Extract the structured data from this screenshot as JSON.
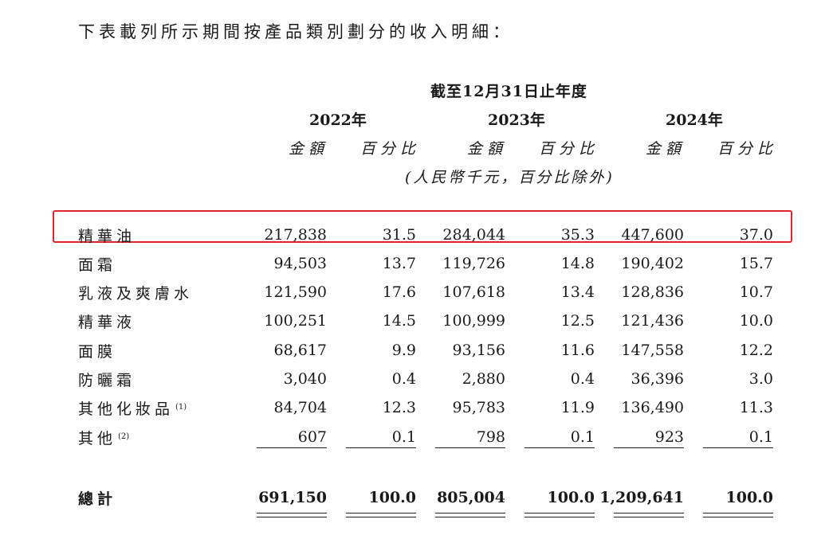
{
  "intro": "下表載列所示期間按產品類別劃分的收入明細：",
  "header": {
    "period": "截至12月31日止年度",
    "years": [
      "2022年",
      "2023年",
      "2024年"
    ],
    "col_amount": "金額",
    "col_percent": "百分比",
    "unit_note": "(人民幣千元，百分比除外)"
  },
  "rows": [
    {
      "label": "精華油",
      "note": "",
      "values": [
        "217,838",
        "31.5",
        "284,044",
        "35.3",
        "447,600",
        "37.0"
      ]
    },
    {
      "label": "面霜",
      "note": "",
      "values": [
        "94,503",
        "13.7",
        "119,726",
        "14.8",
        "190,402",
        "15.7"
      ]
    },
    {
      "label": "乳液及爽膚水",
      "note": "",
      "values": [
        "121,590",
        "17.6",
        "107,618",
        "13.4",
        "128,836",
        "10.7"
      ]
    },
    {
      "label": "精華液",
      "note": "",
      "values": [
        "100,251",
        "14.5",
        "100,999",
        "12.5",
        "121,436",
        "10.0"
      ]
    },
    {
      "label": "面膜",
      "note": "",
      "values": [
        "68,617",
        "9.9",
        "93,156",
        "11.6",
        "147,558",
        "12.2"
      ]
    },
    {
      "label": "防曬霜",
      "note": "",
      "values": [
        "3,040",
        "0.4",
        "2,880",
        "0.4",
        "36,396",
        "3.0"
      ]
    },
    {
      "label": "其他化妝品",
      "note": "(1)",
      "values": [
        "84,704",
        "12.3",
        "95,783",
        "11.9",
        "136,490",
        "11.3"
      ]
    },
    {
      "label": "其他",
      "note": "(2)",
      "values": [
        "607",
        "0.1",
        "798",
        "0.1",
        "923",
        "0.1"
      ]
    }
  ],
  "total": {
    "label": "總計",
    "values": [
      "691,150",
      "100.0",
      "805,004",
      "100.0",
      "1,209,641",
      "100.0"
    ]
  },
  "highlight_color": "#e0242c"
}
